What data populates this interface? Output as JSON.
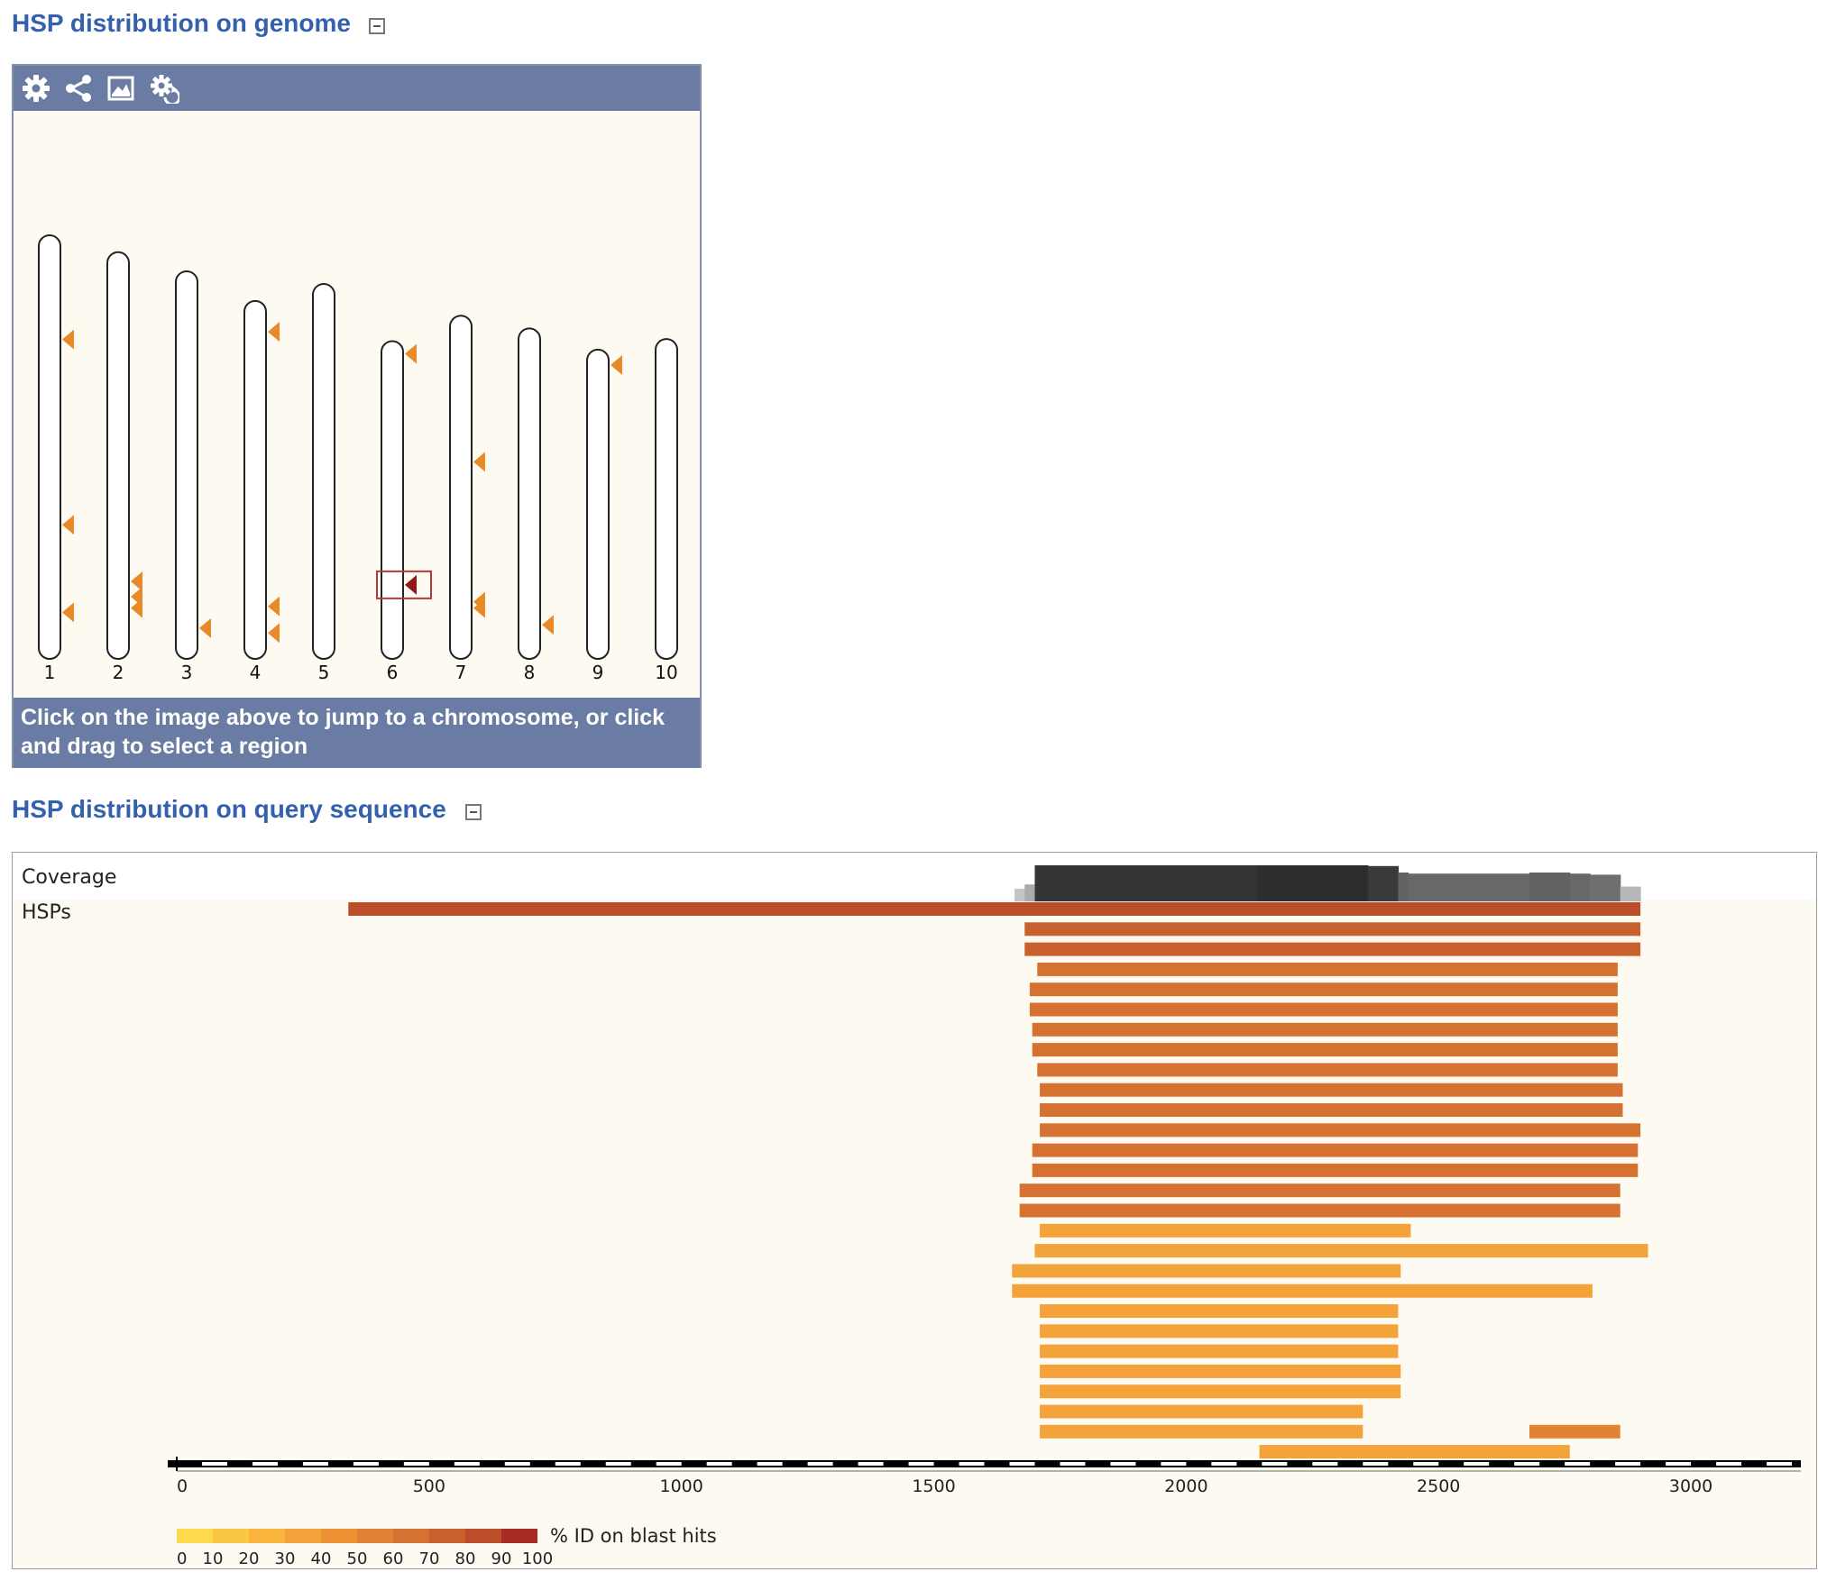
{
  "genome_section": {
    "title": "HSP distribution on genome",
    "footer_text": "Click on the image above to jump to a chromosome, or click and drag to select a region",
    "toolbar_icons": [
      "gear-icon",
      "share-icon",
      "image-export-icon",
      "settings-reset-icon"
    ],
    "chromosomes": [
      {
        "label": "1",
        "hits": [
          {
            "pos": 0.23
          },
          {
            "pos": 0.695
          },
          {
            "pos": 0.915
          }
        ]
      },
      {
        "label": "2",
        "hits": [
          {
            "pos": 0.83
          },
          {
            "pos": 0.87
          },
          {
            "pos": 0.9
          }
        ]
      },
      {
        "label": "3",
        "hits": [
          {
            "pos": 0.95
          }
        ]
      },
      {
        "label": "4",
        "hits": [
          {
            "pos": 0.055
          },
          {
            "pos": 0.88
          },
          {
            "pos": 0.96
          }
        ]
      },
      {
        "label": "5",
        "hits": []
      },
      {
        "label": "6",
        "hits": [
          {
            "pos": 0.0
          },
          {
            "pos": 0.79,
            "selected": true
          }
        ]
      },
      {
        "label": "7",
        "hits": [
          {
            "pos": 0.42
          },
          {
            "pos": 0.86
          },
          {
            "pos": 0.88
          }
        ]
      },
      {
        "label": "8",
        "hits": [
          {
            "pos": 0.93
          }
        ]
      },
      {
        "label": "9",
        "hits": [
          {
            "pos": 0.01
          }
        ]
      },
      {
        "label": "10",
        "hits": []
      }
    ],
    "chromosome_lengths_rel": [
      1.0,
      0.96,
      0.915,
      0.845,
      0.885,
      0.75,
      0.81,
      0.78,
      0.73,
      0.755
    ]
  },
  "query_section": {
    "title": "HSP distribution on query sequence",
    "coverage_label": "Coverage",
    "hsps_label": "HSPs",
    "axis": {
      "min": 0,
      "max": 3200,
      "ticks": [
        0,
        500,
        1000,
        1500,
        2000,
        2500,
        3000
      ]
    },
    "hsps": [
      {
        "start": 340,
        "end": 2900,
        "pid": 85
      },
      {
        "start": 1680,
        "end": 2900,
        "pid": 70
      },
      {
        "start": 1680,
        "end": 2900,
        "pid": 70
      },
      {
        "start": 1705,
        "end": 2855,
        "pid": 68
      },
      {
        "start": 1690,
        "end": 2855,
        "pid": 68
      },
      {
        "start": 1690,
        "end": 2855,
        "pid": 68
      },
      {
        "start": 1695,
        "end": 2855,
        "pid": 68
      },
      {
        "start": 1695,
        "end": 2855,
        "pid": 68
      },
      {
        "start": 1705,
        "end": 2855,
        "pid": 68
      },
      {
        "start": 1710,
        "end": 2865,
        "pid": 60
      },
      {
        "start": 1710,
        "end": 2865,
        "pid": 60
      },
      {
        "start": 1710,
        "end": 2900,
        "pid": 60
      },
      {
        "start": 1695,
        "end": 2895,
        "pid": 60
      },
      {
        "start": 1695,
        "end": 2895,
        "pid": 60
      },
      {
        "start": 1670,
        "end": 2860,
        "pid": 60
      },
      {
        "start": 1670,
        "end": 2860,
        "pid": 60
      },
      {
        "start": 1710,
        "end": 2445,
        "pid": 35
      },
      {
        "start": 1700,
        "end": 2915,
        "pid": 35
      },
      {
        "start": 1655,
        "end": 2425,
        "pid": 35
      },
      {
        "start": 1655,
        "end": 2805,
        "pid": 35
      },
      {
        "start": 1710,
        "end": 2420,
        "pid": 35
      },
      {
        "start": 1710,
        "end": 2420,
        "pid": 35
      },
      {
        "start": 1710,
        "end": 2420,
        "pid": 35
      },
      {
        "start": 1710,
        "end": 2425,
        "pid": 35
      },
      {
        "start": 1710,
        "end": 2425,
        "pid": 35
      },
      {
        "start": 1710,
        "end": 2350,
        "pid": 35
      },
      {
        "start": 1710,
        "end": 2350,
        "pid": 35
      },
      {
        "start": 2145,
        "end": 2760,
        "pid": 35
      }
    ],
    "extra_hsps": [
      {
        "row": 26,
        "start": 2680,
        "end": 2860,
        "pid": 55
      }
    ],
    "legend": {
      "label": "% ID on blast hits",
      "ticks": [
        "0",
        "10",
        "20",
        "30",
        "40",
        "50",
        "60",
        "70",
        "80",
        "90",
        "100"
      ],
      "colors": [
        "#fdd94d",
        "#fbc743",
        "#f8b43d",
        "#f4a23a",
        "#ee9236",
        "#e28234",
        "#d57131",
        "#c8612e",
        "#bb4d2b",
        "#a92b26"
      ]
    }
  }
}
